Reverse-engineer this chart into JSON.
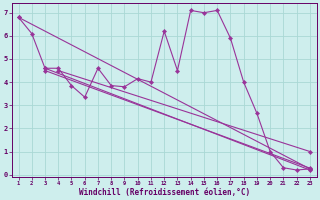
{
  "background_color": "#ceeeed",
  "grid_color": "#aad8d5",
  "line_color": "#993399",
  "xlabel": "Windchill (Refroidissement éolien,°C)",
  "xlim": [
    0.5,
    23.5
  ],
  "ylim": [
    -0.1,
    7.4
  ],
  "xticks": [
    1,
    2,
    3,
    4,
    5,
    6,
    7,
    8,
    9,
    10,
    11,
    12,
    13,
    14,
    15,
    16,
    17,
    18,
    19,
    20,
    21,
    22,
    23
  ],
  "yticks": [
    0,
    1,
    2,
    3,
    4,
    5,
    6,
    7
  ],
  "main_x": [
    1,
    2,
    3,
    4,
    5,
    6,
    7,
    8,
    9,
    10,
    11,
    12,
    13,
    14,
    15,
    16,
    17,
    18,
    19,
    20,
    21,
    22,
    23
  ],
  "main_y": [
    6.8,
    6.1,
    4.6,
    4.6,
    3.85,
    3.35,
    4.6,
    3.85,
    3.8,
    4.15,
    4.0,
    6.2,
    4.5,
    7.1,
    7.0,
    7.1,
    5.9,
    4.0,
    2.65,
    1.0,
    0.3,
    0.2,
    0.25
  ],
  "trend1_x": [
    1,
    23
  ],
  "trend1_y": [
    6.8,
    0.25
  ],
  "trend2_x": [
    3,
    23
  ],
  "trend2_y": [
    4.6,
    0.2
  ],
  "trend3_x": [
    3,
    23
  ],
  "trend3_y": [
    4.5,
    0.28
  ],
  "trend4_x": [
    4,
    23
  ],
  "trend4_y": [
    4.5,
    1.0
  ]
}
